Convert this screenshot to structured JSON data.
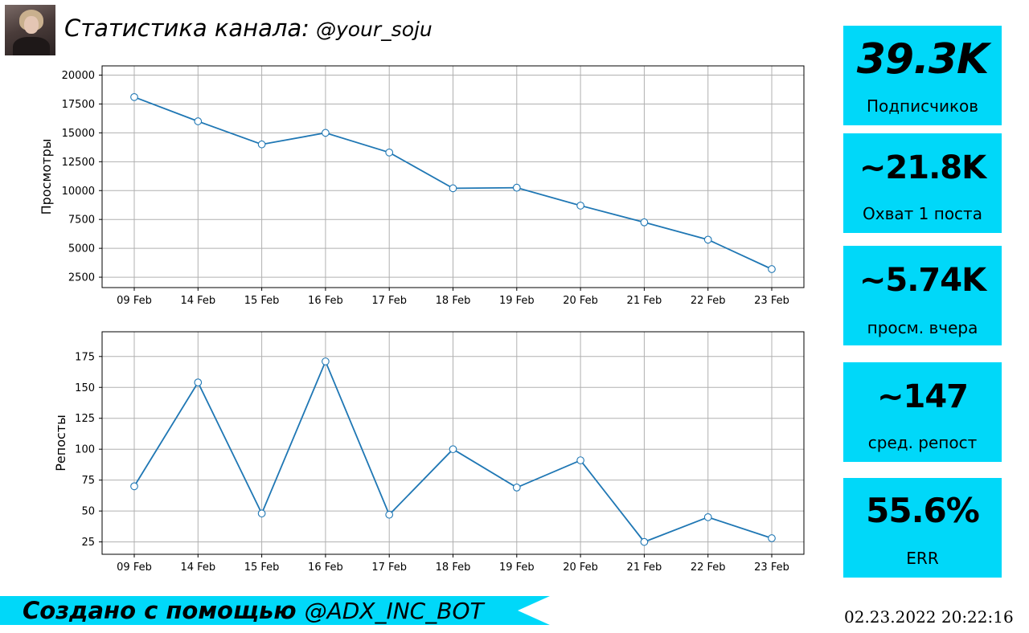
{
  "header": {
    "title": "Статистика канала:",
    "channel": "@your_soju"
  },
  "chart_data": [
    {
      "type": "line",
      "categories": [
        "09 Feb",
        "14 Feb",
        "15 Feb",
        "16 Feb",
        "17 Feb",
        "18 Feb",
        "19 Feb",
        "20 Feb",
        "21 Feb",
        "22 Feb",
        "23 Feb"
      ],
      "series": [
        {
          "values": [
            18100,
            16000,
            14000,
            15000,
            13300,
            10200,
            10250,
            8700,
            7250,
            5750,
            3200
          ]
        }
      ],
      "ylabel": "Просмотры",
      "ylim": [
        1600,
        20800
      ],
      "yticks": [
        2500,
        5000,
        7500,
        10000,
        12500,
        15000,
        17500,
        20000
      ],
      "grid": true,
      "color": "#1f77b4"
    },
    {
      "type": "line",
      "categories": [
        "09 Feb",
        "14 Feb",
        "15 Feb",
        "16 Feb",
        "17 Feb",
        "18 Feb",
        "19 Feb",
        "20 Feb",
        "21 Feb",
        "22 Feb",
        "23 Feb"
      ],
      "series": [
        {
          "values": [
            70,
            154,
            48,
            171,
            47,
            100,
            69,
            91,
            25,
            45,
            28
          ]
        }
      ],
      "ylabel": "Репосты",
      "ylim": [
        15,
        195
      ],
      "yticks": [
        25,
        50,
        75,
        100,
        125,
        150,
        175
      ],
      "grid": true,
      "color": "#1f77b4"
    }
  ],
  "stats": [
    {
      "value": "39.3K",
      "label": "Подписчиков"
    },
    {
      "value": "~21.8K",
      "label": "Охват 1 поста"
    },
    {
      "value": "~5.74K",
      "label": "просм. вчера"
    },
    {
      "value": "~147",
      "label": "сред. репост"
    },
    {
      "value": "55.6%",
      "label": "ERR"
    }
  ],
  "footer": {
    "made_with": "Создано с помощью",
    "bot": "@ADX_INC_BOT",
    "timestamp": "02.23.2022  20:22:16"
  },
  "colors": {
    "accent": "#00d8f9",
    "line": "#1f77b4",
    "grid": "#b0b0b0"
  }
}
